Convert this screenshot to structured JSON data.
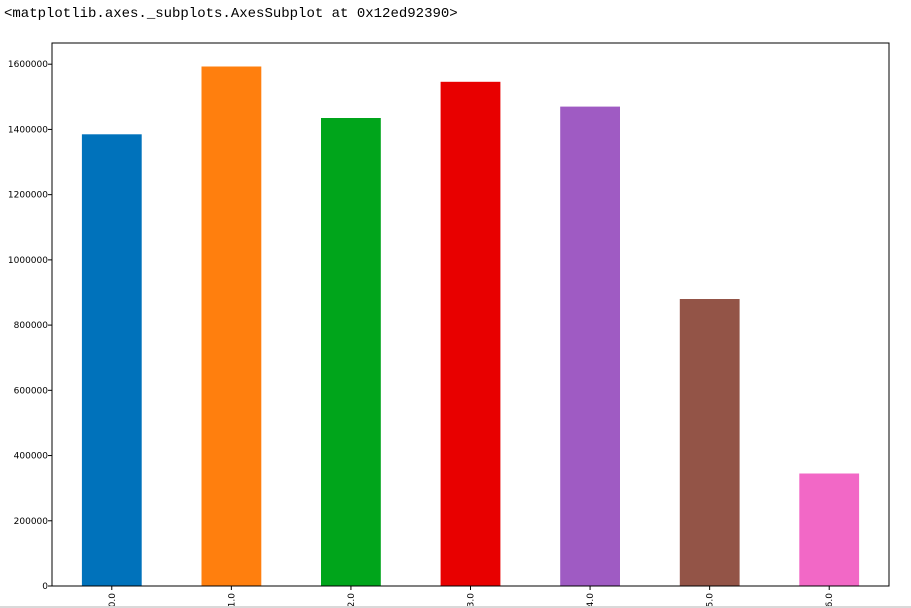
{
  "output": {
    "repr_text": "<matplotlib.axes._subplots.AxesSubplot at 0x12ed92390>"
  },
  "chart_data": {
    "type": "bar",
    "title": "",
    "xlabel": "",
    "ylabel": "",
    "categories": [
      "0.0",
      "1.0",
      "2.0",
      "3.0",
      "4.0",
      "5.0",
      "6.0"
    ],
    "values": [
      1385000,
      1593000,
      1435000,
      1546000,
      1470000,
      880000,
      345000
    ],
    "colors": [
      "#0072bb",
      "#ff7f0e",
      "#00a51b",
      "#e80000",
      "#9f5bc3",
      "#935447",
      "#f268c6"
    ],
    "ylim": [
      0,
      1665000
    ],
    "yticks": [
      0,
      200000,
      400000,
      600000,
      800000,
      1000000,
      1200000,
      1400000,
      1600000
    ],
    "ytick_labels": [
      "0",
      "200000",
      "400000",
      "600000",
      "800000",
      "1000000",
      "1200000",
      "1400000",
      "1600000"
    ],
    "xtick_rotation": "vertical",
    "grid": false,
    "legend": false
  }
}
